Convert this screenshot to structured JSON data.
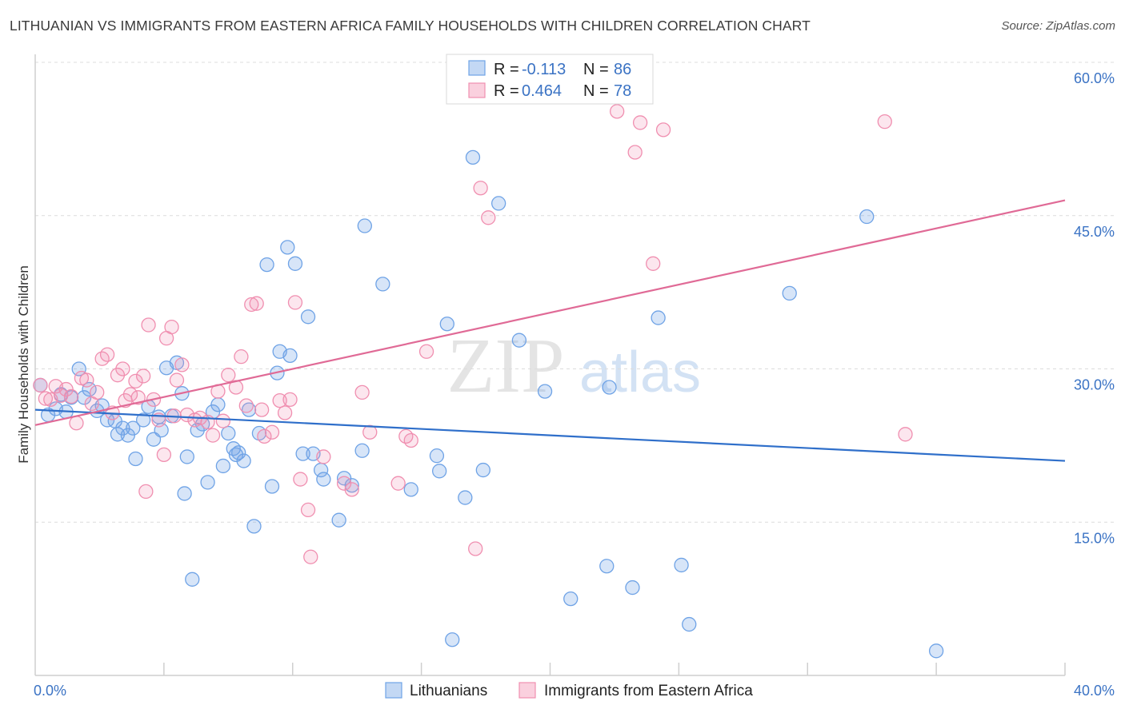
{
  "title": "LITHUANIAN VS IMMIGRANTS FROM EASTERN AFRICA FAMILY HOUSEHOLDS WITH CHILDREN CORRELATION CHART",
  "source": "Source: ZipAtlas.com",
  "watermark": {
    "zip": "ZIP",
    "atlas": "atlas"
  },
  "legend": {
    "r_label": "R =",
    "n_label": "N =",
    "rows": [
      {
        "r": "-0.113",
        "n": "86",
        "color": "#6fa3e6"
      },
      {
        "r": "0.464",
        "n": "78",
        "color": "#f08fb0"
      }
    ]
  },
  "bottom_legend": [
    {
      "label": "Lithuanians",
      "color": "#6fa3e6"
    },
    {
      "label": "Immigrants from Eastern Africa",
      "color": "#f08fb0"
    }
  ],
  "chart_data": {
    "type": "scatter",
    "title": "LITHUANIAN VS IMMIGRANTS FROM EASTERN AFRICA FAMILY HOUSEHOLDS WITH CHILDREN CORRELATION CHART",
    "xlabel": "",
    "ylabel": "Family Households with Children",
    "xlim": [
      0,
      40
    ],
    "ylim": [
      0,
      60
    ],
    "x_tick_labels": [
      "0.0%",
      "40.0%"
    ],
    "y_ticks": [
      15,
      30,
      45,
      60
    ],
    "y_tick_labels": [
      "15.0%",
      "30.0%",
      "45.0%",
      "60.0%"
    ],
    "grid": true,
    "legend_position": "top-center",
    "series": [
      {
        "name": "Lithuanians",
        "color": "#6fa3e6",
        "line_color": "#2f6fca",
        "trend": [
          [
            0,
            26.0
          ],
          [
            40,
            21.0
          ]
        ],
        "points": [
          [
            0.2,
            28.4
          ],
          [
            0.5,
            25.5
          ],
          [
            0.8,
            26.1
          ],
          [
            1.0,
            27.5
          ],
          [
            1.2,
            25.8
          ],
          [
            1.4,
            27.2
          ],
          [
            1.7,
            30.0
          ],
          [
            1.9,
            27.2
          ],
          [
            2.1,
            28.0
          ],
          [
            2.4,
            25.9
          ],
          [
            2.6,
            26.4
          ],
          [
            2.8,
            25.0
          ],
          [
            3.1,
            24.9
          ],
          [
            3.2,
            23.6
          ],
          [
            3.4,
            24.2
          ],
          [
            3.6,
            23.5
          ],
          [
            3.8,
            24.2
          ],
          [
            3.9,
            21.2
          ],
          [
            4.2,
            25.0
          ],
          [
            4.4,
            26.3
          ],
          [
            4.6,
            23.1
          ],
          [
            4.8,
            25.3
          ],
          [
            4.9,
            24.0
          ],
          [
            5.1,
            30.1
          ],
          [
            5.3,
            25.4
          ],
          [
            5.5,
            30.6
          ],
          [
            5.7,
            27.6
          ],
          [
            5.8,
            17.8
          ],
          [
            5.9,
            21.4
          ],
          [
            6.1,
            9.4
          ],
          [
            6.3,
            24.0
          ],
          [
            6.5,
            24.6
          ],
          [
            6.7,
            18.9
          ],
          [
            6.9,
            25.8
          ],
          [
            7.1,
            26.5
          ],
          [
            7.3,
            20.5
          ],
          [
            7.5,
            23.7
          ],
          [
            7.7,
            22.2
          ],
          [
            7.8,
            21.6
          ],
          [
            7.9,
            21.8
          ],
          [
            8.1,
            21.0
          ],
          [
            8.3,
            26.0
          ],
          [
            8.5,
            14.6
          ],
          [
            8.7,
            23.7
          ],
          [
            9.0,
            40.2
          ],
          [
            9.2,
            18.5
          ],
          [
            9.4,
            29.6
          ],
          [
            9.5,
            31.7
          ],
          [
            9.8,
            41.9
          ],
          [
            9.9,
            31.3
          ],
          [
            10.1,
            40.3
          ],
          [
            10.4,
            21.7
          ],
          [
            10.6,
            35.1
          ],
          [
            10.8,
            21.7
          ],
          [
            11.1,
            20.1
          ],
          [
            11.2,
            19.2
          ],
          [
            11.8,
            15.2
          ],
          [
            12.0,
            19.3
          ],
          [
            12.3,
            18.6
          ],
          [
            12.7,
            22.0
          ],
          [
            12.8,
            44.0
          ],
          [
            13.5,
            38.3
          ],
          [
            14.6,
            18.2
          ],
          [
            15.6,
            21.5
          ],
          [
            15.7,
            20.0
          ],
          [
            16.0,
            34.4
          ],
          [
            16.2,
            3.5
          ],
          [
            16.7,
            17.4
          ],
          [
            17.4,
            20.1
          ],
          [
            17.0,
            50.7
          ],
          [
            18.0,
            46.2
          ],
          [
            18.8,
            32.8
          ],
          [
            19.8,
            27.8
          ],
          [
            20.8,
            7.5
          ],
          [
            22.2,
            10.7
          ],
          [
            22.3,
            28.2
          ],
          [
            23.2,
            8.6
          ],
          [
            24.2,
            35.0
          ],
          [
            25.1,
            10.8
          ],
          [
            25.4,
            5.0
          ],
          [
            29.3,
            37.4
          ],
          [
            32.3,
            44.9
          ],
          [
            35.0,
            2.4
          ]
        ]
      },
      {
        "name": "Immigrants from Eastern Africa",
        "color": "#f08fb0",
        "line_color": "#e06a96",
        "trend": [
          [
            0,
            24.5
          ],
          [
            40,
            46.5
          ]
        ],
        "points": [
          [
            0.2,
            28.4
          ],
          [
            0.4,
            27.1
          ],
          [
            0.6,
            27.0
          ],
          [
            0.8,
            28.3
          ],
          [
            1.0,
            27.4
          ],
          [
            1.2,
            28.0
          ],
          [
            1.4,
            27.3
          ],
          [
            1.6,
            24.7
          ],
          [
            1.8,
            29.1
          ],
          [
            2.0,
            28.9
          ],
          [
            2.2,
            26.6
          ],
          [
            2.4,
            27.7
          ],
          [
            2.6,
            31.0
          ],
          [
            2.8,
            31.4
          ],
          [
            3.0,
            25.7
          ],
          [
            3.2,
            29.4
          ],
          [
            3.4,
            30.0
          ],
          [
            3.5,
            26.9
          ],
          [
            3.7,
            27.5
          ],
          [
            3.9,
            28.8
          ],
          [
            4.0,
            27.2
          ],
          [
            4.2,
            29.3
          ],
          [
            4.3,
            18.0
          ],
          [
            4.4,
            34.3
          ],
          [
            4.6,
            27.0
          ],
          [
            4.8,
            25.0
          ],
          [
            5.0,
            21.6
          ],
          [
            5.1,
            33.0
          ],
          [
            5.3,
            34.1
          ],
          [
            5.4,
            25.4
          ],
          [
            5.5,
            28.9
          ],
          [
            5.7,
            30.4
          ],
          [
            5.9,
            25.5
          ],
          [
            6.2,
            25.0
          ],
          [
            6.4,
            25.2
          ],
          [
            6.7,
            24.8
          ],
          [
            6.9,
            23.5
          ],
          [
            7.1,
            27.8
          ],
          [
            7.3,
            24.9
          ],
          [
            7.5,
            29.4
          ],
          [
            7.8,
            28.2
          ],
          [
            8.0,
            31.2
          ],
          [
            8.2,
            26.4
          ],
          [
            8.4,
            36.3
          ],
          [
            8.6,
            36.4
          ],
          [
            8.8,
            26.0
          ],
          [
            8.9,
            23.4
          ],
          [
            9.2,
            23.8
          ],
          [
            9.5,
            26.9
          ],
          [
            9.7,
            25.7
          ],
          [
            9.9,
            27.0
          ],
          [
            10.1,
            36.5
          ],
          [
            10.3,
            19.2
          ],
          [
            10.6,
            16.2
          ],
          [
            10.7,
            11.6
          ],
          [
            11.2,
            21.4
          ],
          [
            12.0,
            18.8
          ],
          [
            12.3,
            18.2
          ],
          [
            12.7,
            27.7
          ],
          [
            13.0,
            23.8
          ],
          [
            14.1,
            18.8
          ],
          [
            14.4,
            23.4
          ],
          [
            14.6,
            23.0
          ],
          [
            15.2,
            31.7
          ],
          [
            17.1,
            12.4
          ],
          [
            17.3,
            47.7
          ],
          [
            17.6,
            44.8
          ],
          [
            22.6,
            55.2
          ],
          [
            23.3,
            51.2
          ],
          [
            23.5,
            54.1
          ],
          [
            24.0,
            40.3
          ],
          [
            24.4,
            53.4
          ],
          [
            33.0,
            54.2
          ],
          [
            33.8,
            23.6
          ]
        ]
      }
    ]
  }
}
